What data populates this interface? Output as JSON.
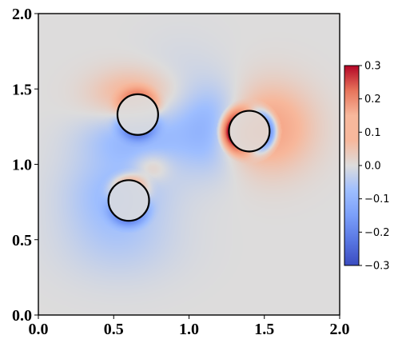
{
  "chart_data": {
    "type": "heatmap",
    "title": "",
    "xlabel": "",
    "ylabel": "",
    "xlim": [
      0.0,
      2.0
    ],
    "ylim": [
      0.0,
      2.0
    ],
    "x_ticks": [
      "0.0",
      "0.5",
      "1.0",
      "1.5",
      "2.0"
    ],
    "y_ticks": [
      "0.0",
      "0.5",
      "1.0",
      "1.5",
      "2.0"
    ],
    "colormap": "coolwarm",
    "colorbar": {
      "range": [
        -0.3,
        0.3
      ],
      "ticks": [
        "0.3",
        "0.2",
        "0.1",
        "0.0",
        "−0.1",
        "−0.2",
        "−0.3"
      ],
      "tick_values": [
        0.3,
        0.2,
        0.1,
        0.0,
        -0.1,
        -0.2,
        -0.3
      ],
      "placement": "right"
    },
    "circles": [
      {
        "name": "circle-1",
        "cx": 0.66,
        "cy": 1.33,
        "r": 0.135
      },
      {
        "name": "circle-2",
        "cx": 1.4,
        "cy": 1.22,
        "r": 0.135
      },
      {
        "name": "circle-3",
        "cx": 0.6,
        "cy": 0.76,
        "r": 0.135
      }
    ],
    "field_blobs": [
      {
        "cx": 1.54,
        "cy": 1.24,
        "sx": 0.28,
        "sy": 0.28,
        "v": 0.12
      },
      {
        "cx": 1.3,
        "cy": 1.2,
        "sx": 0.16,
        "sy": 0.16,
        "v": 0.08
      },
      {
        "cx": 1.18,
        "cy": 1.23,
        "sx": 0.2,
        "sy": 0.25,
        "v": -0.1
      },
      {
        "cx": 0.95,
        "cy": 1.3,
        "sx": 0.3,
        "sy": 0.4,
        "v": -0.04
      },
      {
        "cx": 0.64,
        "cy": 1.47,
        "sx": 0.28,
        "sy": 0.16,
        "v": 0.09
      },
      {
        "cx": 0.63,
        "cy": 1.17,
        "sx": 0.32,
        "sy": 0.16,
        "v": -0.07
      },
      {
        "cx": 0.5,
        "cy": 0.8,
        "sx": 0.32,
        "sy": 0.3,
        "v": -0.08
      },
      {
        "cx": 0.75,
        "cy": 0.98,
        "sx": 0.12,
        "sy": 0.1,
        "v": 0.07
      },
      {
        "cx": 0.55,
        "cy": 0.45,
        "sx": 0.4,
        "sy": 0.25,
        "v": -0.03
      }
    ],
    "colors": {
      "neutral": "#dddcdc",
      "cbar_top": "#b40426",
      "cbar_bottom": "#3b4cc0",
      "circle_stroke": "#000000"
    }
  }
}
